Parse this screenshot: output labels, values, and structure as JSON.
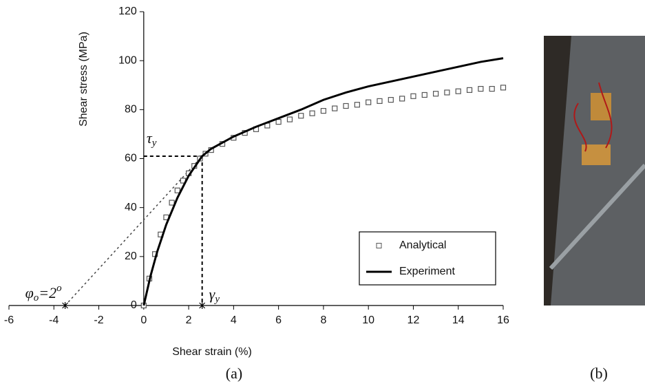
{
  "chart_data": {
    "type": "scatter_line",
    "xlabel": "Shear strain (%)",
    "ylabel": "Shear stress (MPa)",
    "xlim": [
      -6,
      16
    ],
    "xticks": [
      -6,
      -4,
      -2,
      0,
      2,
      4,
      6,
      8,
      10,
      12,
      14,
      16
    ],
    "ylim": [
      0,
      120
    ],
    "yticks": [
      0,
      20,
      40,
      60,
      80,
      100,
      120
    ],
    "legend": "lower right",
    "series": [
      {
        "name": "Analytical",
        "kind": "markers",
        "color": "#555555",
        "x": [
          0,
          0.25,
          0.5,
          0.75,
          1,
          1.25,
          1.5,
          1.75,
          2,
          2.25,
          2.5,
          2.75,
          3,
          3.5,
          4,
          4.5,
          5,
          5.5,
          6,
          6.5,
          7,
          7.5,
          8,
          8.5,
          9,
          9.5,
          10,
          10.5,
          11,
          11.5,
          12,
          12.5,
          13,
          13.5,
          14,
          14.5,
          15,
          15.5,
          16
        ],
        "values": [
          0,
          11,
          21,
          29,
          36,
          42,
          47,
          51,
          54,
          57,
          60,
          62,
          63.5,
          66,
          68.5,
          70.5,
          72,
          73.5,
          75,
          76,
          77.5,
          78.5,
          79.5,
          80.5,
          81.5,
          82,
          83,
          83.5,
          84,
          84.5,
          85.5,
          86,
          86.5,
          87,
          87.5,
          88,
          88.5,
          88.5,
          89
        ]
      },
      {
        "name": "Experiment",
        "kind": "line",
        "color": "#000000",
        "x": [
          0,
          0.3,
          0.6,
          1,
          1.5,
          2,
          2.6,
          3,
          4,
          5,
          6,
          7,
          8,
          9,
          10,
          11,
          12,
          13,
          14,
          15,
          16
        ],
        "values": [
          0,
          12,
          22,
          33,
          44,
          53,
          61,
          64,
          69,
          73,
          76.5,
          80,
          84,
          87,
          89.5,
          91.5,
          93.5,
          95.5,
          97.5,
          99.5,
          101
        ]
      }
    ],
    "yield_stress": 61,
    "yield_strain": 2.6,
    "offset_intercept": -3.5,
    "yield_stress_label": {
      "symbol": "τ",
      "subscript": "y"
    },
    "yield_strain_label": {
      "symbol": "γ",
      "subscript": "y"
    },
    "offset_label": {
      "symbol": "φ",
      "subscript": "o",
      "text": "=2",
      "superscript": "o"
    },
    "caption_a": "(a)",
    "caption_b": "(b)"
  }
}
